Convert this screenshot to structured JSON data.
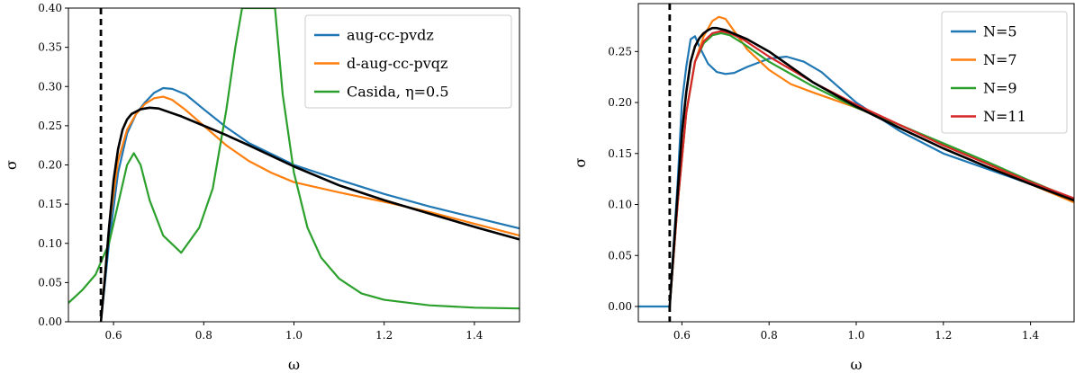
{
  "chart_data": [
    {
      "type": "line",
      "title": "",
      "xlabel": "ω",
      "ylabel": "σ",
      "xlim": [
        0.5,
        1.5
      ],
      "ylim": [
        0.0,
        0.4
      ],
      "xticks": [
        "0.6",
        "0.8",
        "1.0",
        "1.2",
        "1.4"
      ],
      "xtick_values": [
        0.6,
        0.8,
        1.0,
        1.2,
        1.4
      ],
      "yticks": [
        "0.00",
        "0.05",
        "0.10",
        "0.15",
        "0.20",
        "0.25",
        "0.30",
        "0.35",
        "0.40"
      ],
      "ytick_values": [
        0.0,
        0.05,
        0.1,
        0.15,
        0.2,
        0.25,
        0.3,
        0.35,
        0.4
      ],
      "grid": false,
      "legend_position": "top-right",
      "threshold_x": 0.572,
      "series": [
        {
          "name": "aug-cc-pvdz",
          "color": "#1f77b4",
          "in_legend": true,
          "x": [
            0.572,
            0.59,
            0.61,
            0.63,
            0.65,
            0.67,
            0.69,
            0.71,
            0.73,
            0.76,
            0.8,
            0.85,
            0.9,
            1.0,
            1.1,
            1.2,
            1.3,
            1.4,
            1.5
          ],
          "y": [
            0.0,
            0.1,
            0.19,
            0.24,
            0.265,
            0.28,
            0.292,
            0.298,
            0.297,
            0.29,
            0.271,
            0.248,
            0.228,
            0.2,
            0.181,
            0.163,
            0.147,
            0.133,
            0.119
          ]
        },
        {
          "name": "d-aug-cc-pvqz",
          "color": "#ff7f0e",
          "in_legend": true,
          "x": [
            0.572,
            0.59,
            0.61,
            0.63,
            0.65,
            0.67,
            0.69,
            0.71,
            0.73,
            0.76,
            0.8,
            0.85,
            0.9,
            0.95,
            1.0,
            1.1,
            1.2,
            1.3,
            1.4,
            1.5
          ],
          "y": [
            0.0,
            0.12,
            0.205,
            0.245,
            0.265,
            0.278,
            0.285,
            0.287,
            0.283,
            0.27,
            0.25,
            0.225,
            0.205,
            0.19,
            0.178,
            0.165,
            0.153,
            0.14,
            0.125,
            0.11
          ]
        },
        {
          "name": "Casida, η=0.5",
          "color": "#2ca02c",
          "in_legend": true,
          "x": [
            0.5,
            0.53,
            0.56,
            0.59,
            0.61,
            0.63,
            0.645,
            0.66,
            0.68,
            0.71,
            0.75,
            0.79,
            0.82,
            0.85,
            0.87,
            0.885,
            0.958,
            0.975,
            1.0,
            1.03,
            1.06,
            1.1,
            1.15,
            1.2,
            1.3,
            1.4,
            1.5
          ],
          "y": [
            0.024,
            0.04,
            0.06,
            0.1,
            0.15,
            0.2,
            0.215,
            0.2,
            0.155,
            0.11,
            0.088,
            0.12,
            0.17,
            0.27,
            0.35,
            0.4,
            0.4,
            0.29,
            0.19,
            0.12,
            0.082,
            0.055,
            0.036,
            0.028,
            0.021,
            0.018,
            0.017
          ]
        },
        {
          "name": "",
          "color": "#000000",
          "in_legend": false,
          "x": [
            0.572,
            0.58,
            0.59,
            0.6,
            0.61,
            0.62,
            0.63,
            0.64,
            0.65,
            0.66,
            0.68,
            0.7,
            0.75,
            0.8,
            0.85,
            0.9,
            1.0,
            1.1,
            1.2,
            1.3,
            1.4,
            1.5
          ],
          "y": [
            0.0,
            0.05,
            0.12,
            0.18,
            0.22,
            0.245,
            0.258,
            0.265,
            0.268,
            0.271,
            0.273,
            0.272,
            0.262,
            0.25,
            0.238,
            0.225,
            0.198,
            0.174,
            0.155,
            0.138,
            0.121,
            0.105
          ]
        }
      ]
    },
    {
      "type": "line",
      "title": "",
      "xlabel": "ω",
      "ylabel": "σ",
      "xlim": [
        0.5,
        1.5
      ],
      "ylim": [
        -0.015,
        0.297
      ],
      "xticks": [
        "0.6",
        "0.8",
        "1.0",
        "1.2",
        "1.4"
      ],
      "xtick_values": [
        0.6,
        0.8,
        1.0,
        1.2,
        1.4
      ],
      "yticks": [
        "0.00",
        "0.05",
        "0.10",
        "0.15",
        "0.20",
        "0.25"
      ],
      "ytick_values": [
        0.0,
        0.05,
        0.1,
        0.15,
        0.2,
        0.25
      ],
      "grid": false,
      "legend_position": "top-right",
      "threshold_x": 0.572,
      "series": [
        {
          "name": "N=5",
          "color": "#1f77b4",
          "in_legend": true,
          "x": [
            0.5,
            0.572,
            0.59,
            0.6,
            0.61,
            0.62,
            0.63,
            0.64,
            0.66,
            0.68,
            0.7,
            0.72,
            0.75,
            0.8,
            0.84,
            0.88,
            0.92,
            1.0,
            1.1,
            1.2,
            1.3,
            1.4,
            1.5
          ],
          "y": [
            0.0,
            0.0,
            0.12,
            0.2,
            0.235,
            0.262,
            0.265,
            0.255,
            0.238,
            0.23,
            0.228,
            0.229,
            0.235,
            0.243,
            0.245,
            0.24,
            0.23,
            0.2,
            0.172,
            0.15,
            0.135,
            0.12,
            0.104
          ]
        },
        {
          "name": "N=7",
          "color": "#ff7f0e",
          "in_legend": true,
          "x": [
            0.572,
            0.59,
            0.61,
            0.63,
            0.65,
            0.67,
            0.685,
            0.7,
            0.72,
            0.75,
            0.8,
            0.85,
            0.9,
            1.0,
            1.1,
            1.2,
            1.3,
            1.4,
            1.5
          ],
          "y": [
            0.0,
            0.1,
            0.19,
            0.24,
            0.265,
            0.28,
            0.284,
            0.282,
            0.27,
            0.252,
            0.232,
            0.218,
            0.21,
            0.195,
            0.178,
            0.158,
            0.14,
            0.12,
            0.102
          ]
        },
        {
          "name": "N=9",
          "color": "#2ca02c",
          "in_legend": true,
          "x": [
            0.572,
            0.59,
            0.61,
            0.63,
            0.65,
            0.67,
            0.69,
            0.71,
            0.74,
            0.8,
            0.9,
            1.0,
            1.1,
            1.2,
            1.3,
            1.4,
            1.5
          ],
          "y": [
            0.0,
            0.1,
            0.19,
            0.24,
            0.258,
            0.266,
            0.268,
            0.266,
            0.258,
            0.24,
            0.216,
            0.195,
            0.178,
            0.16,
            0.142,
            0.123,
            0.105
          ]
        },
        {
          "name": "N=11",
          "color": "#d62728",
          "in_legend": true,
          "x": [
            0.572,
            0.59,
            0.61,
            0.63,
            0.65,
            0.67,
            0.69,
            0.71,
            0.74,
            0.8,
            0.9,
            1.0,
            1.1,
            1.2,
            1.3,
            1.4,
            1.5
          ],
          "y": [
            0.0,
            0.1,
            0.19,
            0.24,
            0.26,
            0.268,
            0.27,
            0.268,
            0.262,
            0.245,
            0.22,
            0.198,
            0.178,
            0.158,
            0.14,
            0.122,
            0.106
          ]
        },
        {
          "name": "",
          "color": "#000000",
          "in_legend": false,
          "x": [
            0.572,
            0.58,
            0.59,
            0.6,
            0.61,
            0.62,
            0.63,
            0.64,
            0.65,
            0.66,
            0.67,
            0.68,
            0.7,
            0.75,
            0.8,
            0.85,
            0.9,
            1.0,
            1.1,
            1.2,
            1.3,
            1.4,
            1.5
          ],
          "y": [
            0.0,
            0.05,
            0.11,
            0.17,
            0.21,
            0.24,
            0.255,
            0.263,
            0.268,
            0.271,
            0.273,
            0.273,
            0.271,
            0.262,
            0.25,
            0.235,
            0.22,
            0.196,
            0.175,
            0.155,
            0.137,
            0.12,
            0.104
          ]
        }
      ]
    }
  ]
}
